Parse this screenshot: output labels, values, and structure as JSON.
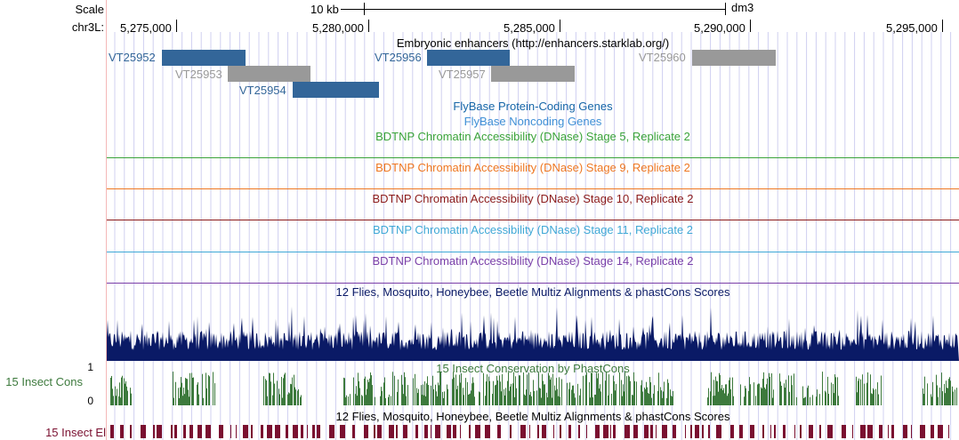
{
  "left": {
    "scale_label": "Scale",
    "chrom_label": "chr3L:",
    "cons_label": "15 Insect Cons",
    "cons_max": "1",
    "cons_zero": "0",
    "el_label": "15 Insect El"
  },
  "ruler": {
    "scale_text": "10 kb",
    "assembly": "dm3",
    "positions": [
      "5,275,000",
      "5,280,000",
      "5,285,000",
      "5,290,000",
      "5,295,000"
    ]
  },
  "tracks": {
    "enhancers_title": "Embryonic enhancers (http://enhancers.starklab.org/)",
    "features": [
      {
        "name": "VT25952",
        "color": "#336699"
      },
      {
        "name": "VT25953",
        "color": "#999999"
      },
      {
        "name": "VT25954",
        "color": "#336699"
      },
      {
        "name": "VT25956",
        "color": "#336699"
      },
      {
        "name": "VT25957",
        "color": "#999999"
      },
      {
        "name": "VT25960",
        "color": "#999999"
      }
    ],
    "flybase_coding": "FlyBase Protein-Coding Genes",
    "flybase_noncoding": "FlyBase Noncoding Genes",
    "dnase_stage5": "BDTNP Chromatin Accessibility (DNase) Stage 5, Replicate 2",
    "dnase_stage9": "BDTNP Chromatin Accessibility (DNase) Stage 9, Replicate 2",
    "dnase_stage10": "BDTNP Chromatin Accessibility (DNase) Stage 10, Replicate 2",
    "dnase_stage11": "BDTNP Chromatin Accessibility (DNase) Stage 11, Replicate 2",
    "dnase_stage14": "BDTNP Chromatin Accessibility (DNase) Stage 14, Replicate 2",
    "multiz_title": "12 Flies, Mosquito, Honeybee, Beetle Multiz Alignments & phastCons Scores",
    "phastcons_title": "15 Insect Conservation by PhastCons",
    "multiz_title_2": "12 Flies, Mosquito, Honeybee, Beetle Multiz Alignments & phastCons Scores"
  },
  "colors": {
    "coding": "#1565a8",
    "noncoding": "#3f8fd6",
    "stage5": "#3aa33a",
    "stage9": "#ee7722",
    "stage10": "#8b1a1a",
    "stage11": "#3fa8d6",
    "stage14": "#7a3fa8",
    "multiz": "#0a1a66",
    "phastcons": "#3d7a3d",
    "elements": "#7a1030",
    "gridline": "#d0d0f0"
  }
}
